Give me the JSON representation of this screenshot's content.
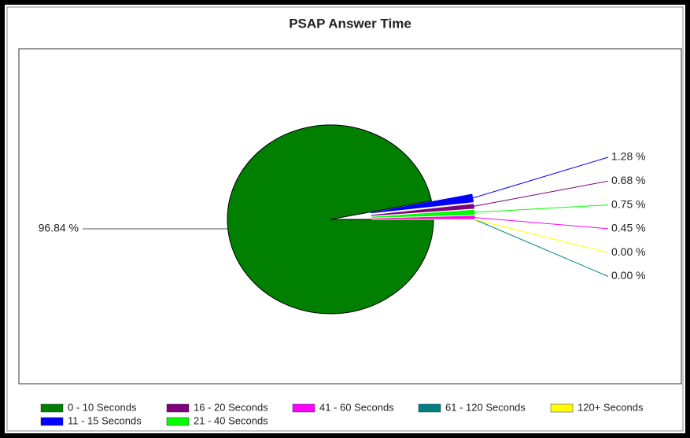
{
  "chart_data": {
    "type": "pie",
    "title": "PSAP Answer Time",
    "categories": [
      "0 - 10 Seconds",
      "11 - 15 Seconds",
      "16 - 20 Seconds",
      "21 - 40 Seconds",
      "41 - 60 Seconds",
      "61 - 120 Seconds",
      "120+ Seconds"
    ],
    "values": [
      96.84,
      1.28,
      0.68,
      0.75,
      0.45,
      0.0,
      0.0
    ],
    "value_labels": [
      "96.84 %",
      "1.28 %",
      "0.68 %",
      "0.75 %",
      "0.45 %",
      "0.00 %",
      "0.00 %"
    ],
    "colors": [
      "#007f00",
      "#0000ff",
      "#800080",
      "#00ff00",
      "#ff00ff",
      "#008080",
      "#ffff00"
    ],
    "legend": "bottom"
  }
}
